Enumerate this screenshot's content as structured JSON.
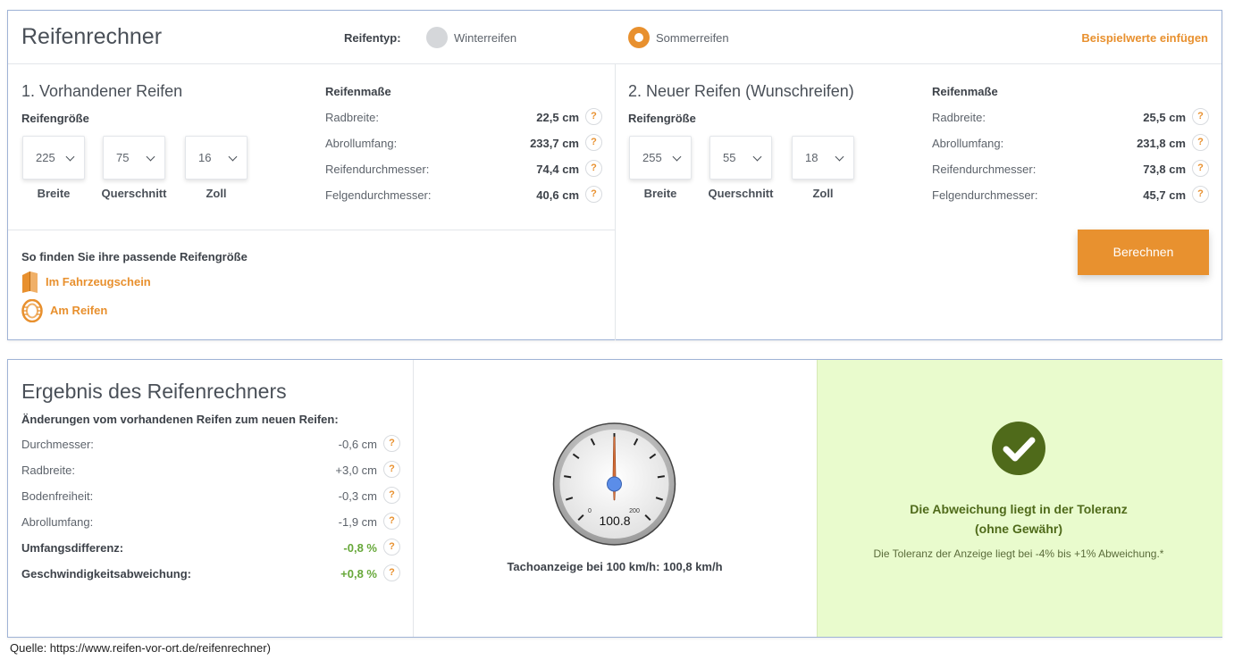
{
  "header": {
    "title": "Reifenrechner",
    "tire_type_label": "Reifentyp:",
    "tire_types": [
      {
        "label": "Winterreifen",
        "selected": false
      },
      {
        "label": "Sommerreifen",
        "selected": true
      }
    ],
    "sample_values_link": "Beispielwerte einfügen"
  },
  "existing_tire": {
    "title": "1. Vorhandener Reifen",
    "size_label": "Reifengröße",
    "selects": [
      {
        "value": "225",
        "caption": "Breite"
      },
      {
        "value": "75",
        "caption": "Querschnitt"
      },
      {
        "value": "16",
        "caption": "Zoll"
      }
    ],
    "measures_title": "Reifenmaße",
    "measures": [
      {
        "label": "Radbreite:",
        "value": "22,5 cm"
      },
      {
        "label": "Abrollumfang:",
        "value": "233,7 cm"
      },
      {
        "label": "Reifendurchmesser:",
        "value": "74,4 cm"
      },
      {
        "label": "Felgendurchmesser:",
        "value": "40,6 cm"
      }
    ]
  },
  "find_size": {
    "title": "So finden Sie ihre passende Reifengröße",
    "links": [
      {
        "label": "Im Fahrzeugschein",
        "icon": "document-icon"
      },
      {
        "label": "Am Reifen",
        "icon": "tire-icon"
      }
    ]
  },
  "new_tire": {
    "title": "2. Neuer Reifen (Wunschreifen)",
    "size_label": "Reifengröße",
    "selects": [
      {
        "value": "255",
        "caption": "Breite"
      },
      {
        "value": "55",
        "caption": "Querschnitt"
      },
      {
        "value": "18",
        "caption": "Zoll"
      }
    ],
    "measures_title": "Reifenmaße",
    "measures": [
      {
        "label": "Radbreite:",
        "value": "25,5 cm"
      },
      {
        "label": "Abrollumfang:",
        "value": "231,8 cm"
      },
      {
        "label": "Reifendurchmesser:",
        "value": "73,8 cm"
      },
      {
        "label": "Felgendurchmesser:",
        "value": "45,7 cm"
      }
    ],
    "calculate_button": "Berechnen"
  },
  "result": {
    "title": "Ergebnis des Reifenrechners",
    "subtitle": "Änderungen vom vorhandenen Reifen zum neuen Reifen:",
    "rows": [
      {
        "label": "Durchmesser:",
        "value": "-0,6 cm"
      },
      {
        "label": "Radbreite:",
        "value": "+3,0 cm"
      },
      {
        "label": "Bodenfreiheit:",
        "value": "-0,3 cm"
      },
      {
        "label": "Abrollumfang:",
        "value": "-1,9 cm"
      },
      {
        "label": "Umfangsdifferenz:",
        "value": "-0,8 %"
      },
      {
        "label": "Geschwindigkeitsabweichung:",
        "value": "+0,8 %"
      }
    ],
    "speedometer": {
      "scale_min": "0",
      "scale_max": "200",
      "reading": "100.8",
      "caption": "Tachoanzeige bei 100 km/h: 100,8 km/h"
    },
    "tolerance": {
      "status_line1": "Die Abweichung liegt in der Toleranz",
      "status_line2": "(ohne Gewähr)",
      "note": "Die Toleranz der Anzeige liegt bei -4% bis +1% Abweichung.*",
      "icon": "check-circle-icon"
    }
  },
  "source": "Quelle: https://www.reifen-vor-ort.de/reifenrechner)",
  "colors": {
    "accent": "#e8902e",
    "positive": "#67a83a",
    "success_bg": "#e9fbcd",
    "success_icon": "#4f6a1a",
    "gauge_needle": "#d9703a",
    "gauge_hub": "#5b8de8"
  }
}
